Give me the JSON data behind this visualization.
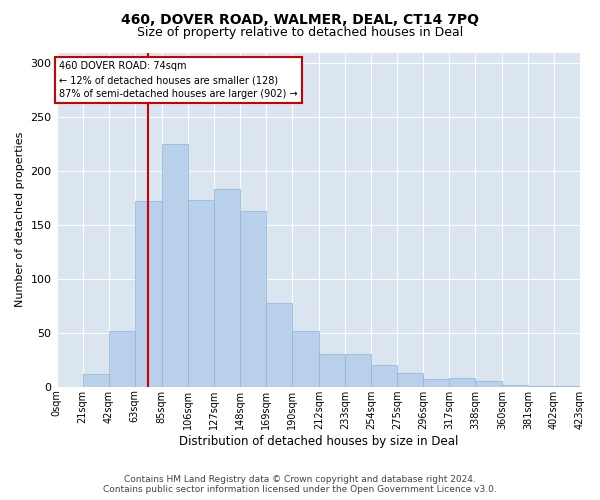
{
  "title": "460, DOVER ROAD, WALMER, DEAL, CT14 7PQ",
  "subtitle": "Size of property relative to detached houses in Deal",
  "xlabel": "Distribution of detached houses by size in Deal",
  "ylabel": "Number of detached properties",
  "footer1": "Contains HM Land Registry data © Crown copyright and database right 2024.",
  "footer2": "Contains public sector information licensed under the Open Government Licence v3.0.",
  "annotation_line1": "460 DOVER ROAD: 74sqm",
  "annotation_line2": "← 12% of detached houses are smaller (128)",
  "annotation_line3": "87% of semi-detached houses are larger (902) →",
  "property_size": 74,
  "bin_edges": [
    0,
    21,
    42,
    63,
    85,
    106,
    127,
    148,
    169,
    190,
    212,
    233,
    254,
    275,
    296,
    317,
    338,
    360,
    381,
    402,
    423
  ],
  "bar_heights": [
    0,
    12,
    52,
    172,
    225,
    173,
    183,
    163,
    78,
    52,
    30,
    30,
    20,
    13,
    7,
    8,
    5,
    2,
    1,
    1
  ],
  "bar_color": "#B8D0EA",
  "bar_edge_color": "#8EB4D8",
  "vline_color": "#CC0000",
  "vline_x": 74,
  "annotation_border_color": "#CC0000",
  "bg_color": "#DAE5F0",
  "ylim": [
    0,
    310
  ],
  "yticks": [
    0,
    50,
    100,
    150,
    200,
    250,
    300
  ],
  "tick_labels": [
    "0sqm",
    "21sqm",
    "42sqm",
    "63sqm",
    "85sqm",
    "106sqm",
    "127sqm",
    "148sqm",
    "169sqm",
    "190sqm",
    "212sqm",
    "233sqm",
    "254sqm",
    "275sqm",
    "296sqm",
    "317sqm",
    "338sqm",
    "360sqm",
    "381sqm",
    "402sqm",
    "423sqm"
  ]
}
